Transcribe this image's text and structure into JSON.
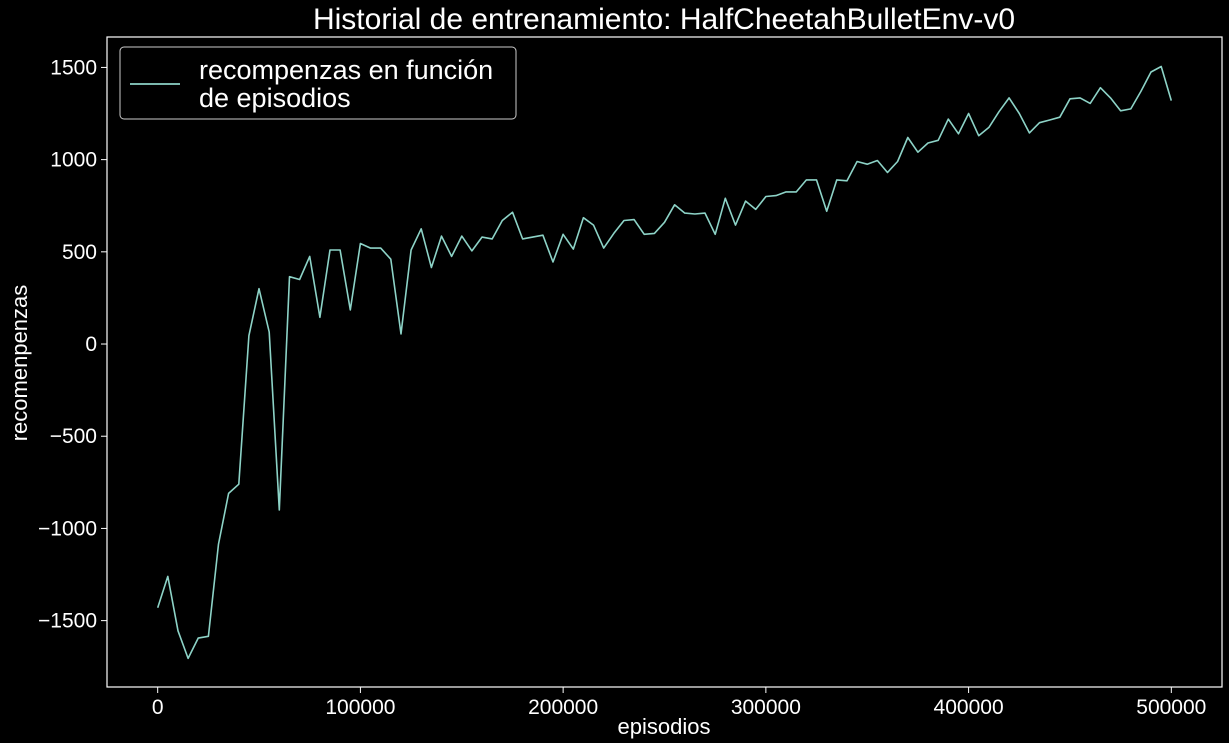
{
  "colors": {
    "background": "#000000",
    "line": "#8dd3c7",
    "text": "#ffffff",
    "axis": "#ffffff"
  },
  "chart_data": {
    "type": "line",
    "title": "Historial de entrenamiento: HalfCheetahBulletEnv-v0",
    "xlabel": "episodios",
    "ylabel": "recomenpenzas",
    "xlim": [
      -25000,
      525000
    ],
    "ylim": [
      -1860,
      1665
    ],
    "xticks": [
      0,
      100000,
      200000,
      300000,
      400000,
      500000
    ],
    "yticks": [
      -1500,
      -1000,
      -500,
      0,
      500,
      1000,
      1500
    ],
    "ytick_labels": [
      "−1500",
      "−1000",
      "−500",
      "0",
      "500",
      "1000",
      "1500"
    ],
    "grid": false,
    "legend": {
      "position": "top-left",
      "lines": [
        "recompenzas en función",
        "de episodios"
      ]
    },
    "series": [
      {
        "name": "recompenzas en función de episodios",
        "x": [
          0,
          5000,
          10000,
          15000,
          20000,
          25000,
          30000,
          35000,
          40000,
          45000,
          50000,
          55000,
          60000,
          65000,
          70000,
          75000,
          80000,
          85000,
          90000,
          95000,
          100000,
          105000,
          110000,
          115000,
          120000,
          125000,
          130000,
          135000,
          140000,
          145000,
          150000,
          155000,
          160000,
          165000,
          170000,
          175000,
          180000,
          185000,
          190000,
          195000,
          200000,
          205000,
          210000,
          215000,
          220000,
          225000,
          230000,
          235000,
          240000,
          245000,
          250000,
          255000,
          260000,
          265000,
          270000,
          275000,
          280000,
          285000,
          290000,
          295000,
          300000,
          305000,
          310000,
          315000,
          320000,
          325000,
          330000,
          335000,
          340000,
          345000,
          350000,
          355000,
          360000,
          365000,
          370000,
          375000,
          380000,
          385000,
          390000,
          395000,
          400000,
          405000,
          410000,
          415000,
          420000,
          425000,
          430000,
          435000,
          440000,
          445000,
          450000,
          455000,
          460000,
          465000,
          470000,
          475000,
          480000,
          485000,
          490000,
          495000,
          500000
        ],
        "y": [
          -1430,
          -1260,
          -1555,
          -1705,
          -1595,
          -1585,
          -1085,
          -810,
          -760,
          45,
          300,
          65,
          -900,
          365,
          350,
          475,
          145,
          510,
          510,
          185,
          545,
          520,
          520,
          460,
          55,
          510,
          625,
          415,
          585,
          475,
          585,
          505,
          580,
          570,
          670,
          715,
          570,
          580,
          590,
          445,
          595,
          515,
          685,
          645,
          520,
          600,
          670,
          675,
          595,
          600,
          660,
          755,
          710,
          705,
          710,
          595,
          790,
          645,
          775,
          730,
          800,
          805,
          825,
          825,
          890,
          890,
          720,
          890,
          885,
          990,
          975,
          995,
          930,
          990,
          1120,
          1040,
          1090,
          1105,
          1220,
          1140,
          1250,
          1130,
          1175,
          1260,
          1335,
          1250,
          1145,
          1200,
          1215,
          1230,
          1330,
          1335,
          1305,
          1390,
          1335,
          1265,
          1275,
          1370,
          1475,
          1505,
          1320
        ]
      }
    ]
  }
}
